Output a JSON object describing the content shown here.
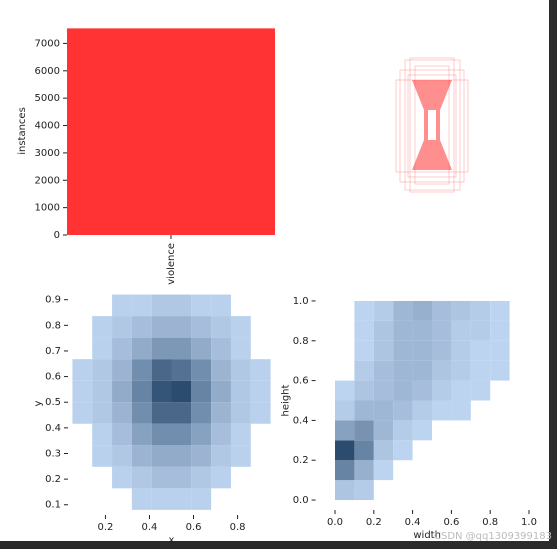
{
  "chart_data": [
    {
      "type": "bar",
      "categories": [
        "violence"
      ],
      "values": [
        7550
      ],
      "color": "#ff3333",
      "ylabel": "instances",
      "ylim": [
        0,
        7600
      ],
      "yticks": [
        0,
        1000,
        2000,
        3000,
        4000,
        5000,
        6000,
        7000
      ]
    },
    {
      "type": "hist2d",
      "xlabel": "x",
      "ylabel": "y",
      "color": "#1f77b4",
      "xlim": [
        0.03,
        0.97
      ],
      "ylim": [
        0.06,
        0.93
      ],
      "xticks": [
        0.2,
        0.4,
        0.6,
        0.8
      ],
      "yticks": [
        0.1,
        0.2,
        0.3,
        0.4,
        0.5,
        0.6,
        0.7,
        0.8,
        0.9
      ],
      "xbins": [
        0.05,
        0.14,
        0.23,
        0.32,
        0.41,
        0.5,
        0.59,
        0.68,
        0.77,
        0.86,
        0.95
      ],
      "ybins": [
        0.08,
        0.164,
        0.248,
        0.332,
        0.416,
        0.5,
        0.584,
        0.668,
        0.752,
        0.836,
        0.92
      ],
      "z": [
        [
          0,
          0,
          0,
          1,
          1,
          1,
          1,
          0,
          0,
          0
        ],
        [
          0,
          0,
          1,
          2,
          3,
          3,
          2,
          1,
          0,
          0
        ],
        [
          0,
          1,
          2,
          4,
          5,
          5,
          4,
          2,
          1,
          0
        ],
        [
          0,
          1,
          3,
          6,
          8,
          8,
          6,
          3,
          1,
          0
        ],
        [
          1,
          2,
          4,
          8,
          12,
          12,
          8,
          4,
          2,
          1
        ],
        [
          1,
          2,
          5,
          9,
          14,
          15,
          9,
          5,
          2,
          1
        ],
        [
          1,
          2,
          4,
          8,
          12,
          11,
          8,
          4,
          2,
          1
        ],
        [
          0,
          1,
          3,
          5,
          7,
          7,
          5,
          3,
          1,
          0
        ],
        [
          0,
          1,
          2,
          3,
          4,
          4,
          3,
          2,
          1,
          0
        ],
        [
          0,
          0,
          1,
          1,
          2,
          2,
          1,
          1,
          0,
          0
        ]
      ]
    },
    {
      "type": "hist2d",
      "xlabel": "width",
      "ylabel": "height",
      "color": "#1f77b4",
      "xlim": [
        -0.1,
        1.05
      ],
      "ylim": [
        -0.05,
        1.05
      ],
      "xticks": [
        {
          "value": 0,
          "label": "0.0"
        },
        0.2,
        0.4,
        0.6,
        0.8,
        {
          "value": 1,
          "label": "1.0"
        }
      ],
      "yticks": [
        {
          "value": 0,
          "label": "0.0"
        },
        0.2,
        0.4,
        0.6,
        0.8,
        {
          "value": 1,
          "label": "1.0"
        }
      ],
      "xbins": [
        0,
        0.1,
        0.2,
        0.3,
        0.4,
        0.5,
        0.6,
        0.7,
        0.8,
        0.9,
        1
      ],
      "ybins": [
        0,
        0.1,
        0.2,
        0.3,
        0.4,
        0.5,
        0.6,
        0.7,
        0.8,
        0.9,
        1
      ],
      "z": [
        [
          3,
          2,
          0,
          0,
          0,
          0,
          0,
          0,
          0,
          0
        ],
        [
          12,
          6,
          1,
          0,
          0,
          0,
          0,
          0,
          0,
          0
        ],
        [
          20,
          12,
          3,
          1,
          0,
          0,
          0,
          0,
          0,
          0
        ],
        [
          8,
          10,
          5,
          2,
          1,
          0,
          0,
          0,
          0,
          0
        ],
        [
          2,
          5,
          5,
          4,
          2,
          1,
          1,
          0,
          0,
          0
        ],
        [
          1,
          3,
          4,
          5,
          4,
          2,
          1,
          1,
          0,
          0
        ],
        [
          0,
          2,
          4,
          5,
          5,
          3,
          2,
          1,
          1,
          0
        ],
        [
          0,
          1,
          3,
          5,
          5,
          4,
          2,
          1,
          1,
          0
        ],
        [
          0,
          1,
          3,
          5,
          5,
          4,
          2,
          2,
          1,
          0
        ],
        [
          0,
          1,
          2,
          5,
          6,
          4,
          3,
          2,
          1,
          0
        ]
      ]
    }
  ],
  "watermark": "CSDN @qq1309399183"
}
